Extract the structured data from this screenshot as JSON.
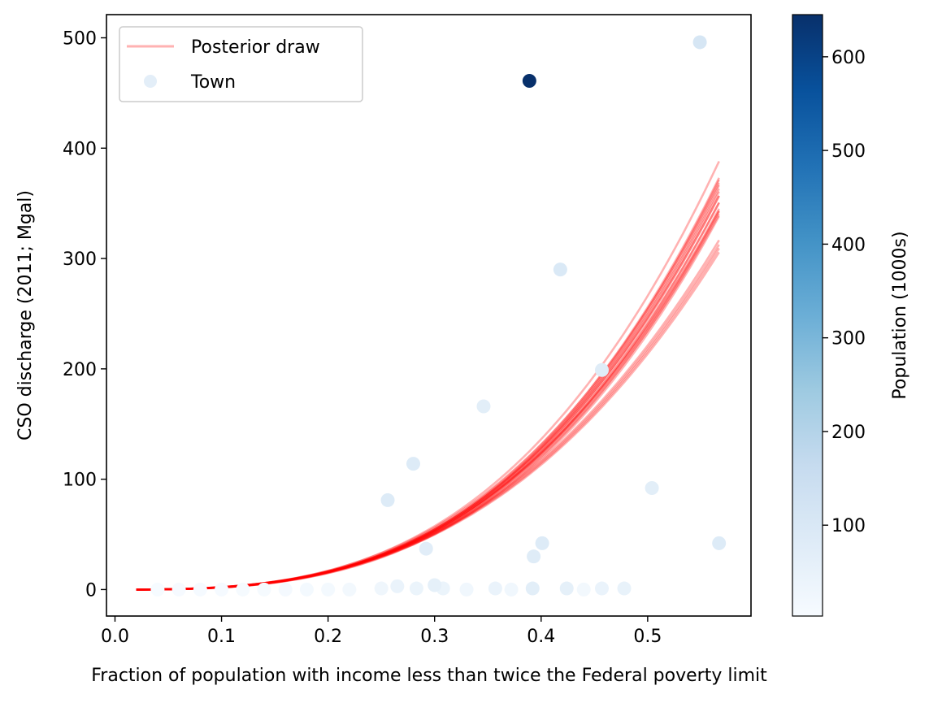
{
  "chart_data": {
    "type": "scatter",
    "title": "",
    "xlabel": "Fraction of population with income less than twice the Federal poverty limit",
    "ylabel": "CSO discharge (2011; Mgal)",
    "xlim": [
      -0.008,
      0.597
    ],
    "ylim": [
      -24,
      521
    ],
    "x_ticks": [
      "0.0",
      "0.1",
      "0.2",
      "0.3",
      "0.4",
      "0.5"
    ],
    "y_ticks": [
      "0",
      "100",
      "200",
      "300",
      "400",
      "500"
    ],
    "grid": false,
    "legend": {
      "position": "upper-left",
      "entries": [
        {
          "label": "Posterior draw",
          "kind": "line",
          "color": "#ff0000",
          "alpha": 0.3
        },
        {
          "label": "Town",
          "kind": "point",
          "color": "#e3eef8"
        }
      ]
    },
    "colorbar": {
      "label": "Population (1000s)",
      "cmap": "Blues",
      "range": [
        3,
        645
      ],
      "ticks": [
        "100",
        "200",
        "300",
        "400",
        "500",
        "600"
      ]
    },
    "series": [
      {
        "name": "Town",
        "kind": "scatter",
        "color_encodes": "population_1000s",
        "points": [
          {
            "x": 0.389,
            "y": 461,
            "pop": 645
          },
          {
            "x": 0.549,
            "y": 496,
            "pop": 110
          },
          {
            "x": 0.418,
            "y": 290,
            "pop": 95
          },
          {
            "x": 0.457,
            "y": 199,
            "pop": 80
          },
          {
            "x": 0.346,
            "y": 166,
            "pop": 70
          },
          {
            "x": 0.28,
            "y": 114,
            "pop": 85
          },
          {
            "x": 0.256,
            "y": 81,
            "pop": 85
          },
          {
            "x": 0.504,
            "y": 92,
            "pop": 70
          },
          {
            "x": 0.292,
            "y": 37,
            "pop": 75
          },
          {
            "x": 0.401,
            "y": 42,
            "pop": 85
          },
          {
            "x": 0.567,
            "y": 42,
            "pop": 85
          },
          {
            "x": 0.393,
            "y": 30,
            "pop": 80
          },
          {
            "x": 0.3,
            "y": 4,
            "pop": 60
          },
          {
            "x": 0.265,
            "y": 3,
            "pop": 45
          },
          {
            "x": 0.478,
            "y": 1,
            "pop": 50
          },
          {
            "x": 0.457,
            "y": 1,
            "pop": 45
          },
          {
            "x": 0.424,
            "y": 1,
            "pop": 60
          },
          {
            "x": 0.392,
            "y": 1,
            "pop": 70
          },
          {
            "x": 0.357,
            "y": 1,
            "pop": 45
          },
          {
            "x": 0.308,
            "y": 1,
            "pop": 40
          },
          {
            "x": 0.283,
            "y": 1,
            "pop": 40
          },
          {
            "x": 0.25,
            "y": 1,
            "pop": 30
          },
          {
            "x": 0.22,
            "y": 0,
            "pop": 20
          },
          {
            "x": 0.2,
            "y": 0,
            "pop": 15
          },
          {
            "x": 0.18,
            "y": 0,
            "pop": 15
          },
          {
            "x": 0.16,
            "y": 0,
            "pop": 12
          },
          {
            "x": 0.14,
            "y": 0,
            "pop": 10
          },
          {
            "x": 0.12,
            "y": 0,
            "pop": 10
          },
          {
            "x": 0.1,
            "y": 0,
            "pop": 8
          },
          {
            "x": 0.08,
            "y": 0,
            "pop": 8
          },
          {
            "x": 0.06,
            "y": 0,
            "pop": 6
          },
          {
            "x": 0.04,
            "y": 0,
            "pop": 5
          },
          {
            "x": 0.33,
            "y": 0,
            "pop": 25
          },
          {
            "x": 0.372,
            "y": 0,
            "pop": 25
          },
          {
            "x": 0.44,
            "y": 0,
            "pop": 20
          }
        ]
      },
      {
        "name": "Posterior draw",
        "kind": "curves",
        "color": "#ff0000",
        "alpha": 0.3,
        "x_range": [
          0.02,
          0.567
        ],
        "form": "y = a * x^b",
        "draws": [
          {
            "a": 2129,
            "b": 3.0
          },
          {
            "a": 2047,
            "b": 3.0
          },
          {
            "a": 2010,
            "b": 3.0
          },
          {
            "a": 1978,
            "b": 3.0
          },
          {
            "a": 1958,
            "b": 3.0
          },
          {
            "a": 1924,
            "b": 3.0
          },
          {
            "a": 1880,
            "b": 3.0
          },
          {
            "a": 1856,
            "b": 3.0
          },
          {
            "a": 1965,
            "b": 2.95
          },
          {
            "a": 1902,
            "b": 2.95
          },
          {
            "a": 1840,
            "b": 2.95
          },
          {
            "a": 1814,
            "b": 2.95
          },
          {
            "a": 1595,
            "b": 2.85
          },
          {
            "a": 1575,
            "b": 2.85
          },
          {
            "a": 1558,
            "b": 2.85
          },
          {
            "a": 1540,
            "b": 2.85
          },
          {
            "a": 1970,
            "b": 2.98
          },
          {
            "a": 2060,
            "b": 3.02
          },
          {
            "a": 1800,
            "b": 2.92
          },
          {
            "a": 1890,
            "b": 2.97
          }
        ]
      }
    ]
  }
}
